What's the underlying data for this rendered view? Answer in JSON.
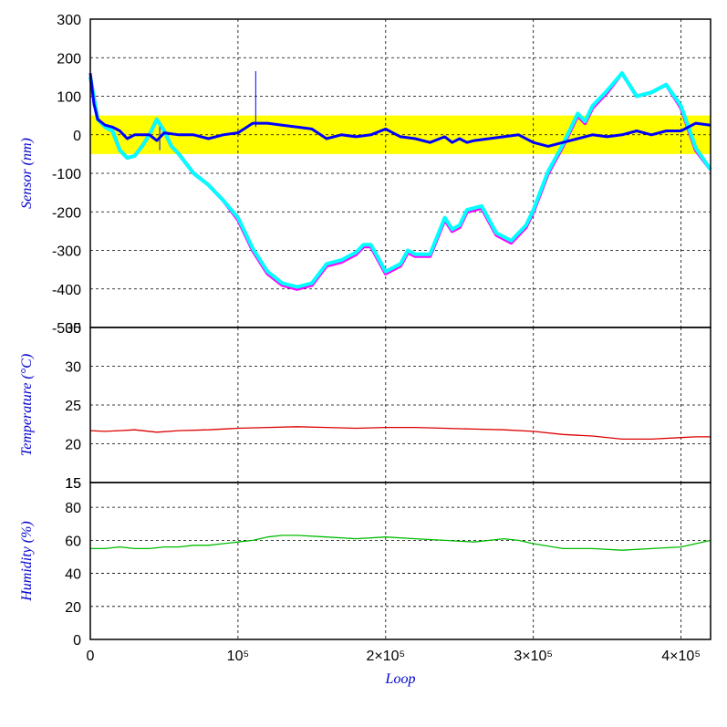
{
  "chart_data": [
    {
      "type": "line",
      "panel": "sensor",
      "ylabel": "Sensor (nm)",
      "ylim": [
        -500,
        300
      ],
      "yticks": [
        300,
        200,
        100,
        0,
        -100,
        -200,
        -300,
        -400,
        -500
      ],
      "xlim": [
        0,
        420000
      ],
      "band": {
        "y0": -50,
        "y1": 50,
        "color": "#ffff00"
      },
      "series": [
        {
          "color": "#ff00ff",
          "x": [
            0,
            5000,
            10000,
            15000,
            20000,
            25000,
            30000,
            35000,
            40000,
            45000,
            50000,
            55000,
            60000,
            70000,
            80000,
            90000,
            100000,
            110000,
            120000,
            130000,
            140000,
            145000,
            150000,
            160000,
            170000,
            180000,
            185000,
            190000,
            200000,
            210000,
            215000,
            220000,
            230000,
            240000,
            245000,
            250000,
            255000,
            265000,
            275000,
            285000,
            295000,
            300000,
            310000,
            320000,
            330000,
            335000,
            340000,
            350000,
            360000,
            370000,
            380000,
            390000,
            400000,
            410000,
            420000
          ],
          "values": [
            150,
            40,
            20,
            10,
            -40,
            -60,
            -55,
            -30,
            0,
            40,
            10,
            -30,
            -50,
            -100,
            -130,
            -170,
            -220,
            -300,
            -360,
            -390,
            -400,
            -395,
            -390,
            -340,
            -330,
            -310,
            -290,
            -290,
            -360,
            -340,
            -305,
            -315,
            -315,
            -220,
            -250,
            -240,
            -200,
            -190,
            -260,
            -280,
            -240,
            -200,
            -100,
            -30,
            50,
            30,
            70,
            110,
            160,
            100,
            110,
            130,
            70,
            -40,
            -90
          ]
        },
        {
          "color": "#00ffff",
          "x": [
            0,
            5000,
            10000,
            15000,
            20000,
            25000,
            30000,
            35000,
            40000,
            45000,
            50000,
            55000,
            60000,
            70000,
            80000,
            90000,
            100000,
            110000,
            120000,
            130000,
            140000,
            145000,
            150000,
            160000,
            170000,
            180000,
            185000,
            190000,
            200000,
            210000,
            215000,
            220000,
            230000,
            240000,
            245000,
            250000,
            255000,
            265000,
            275000,
            285000,
            295000,
            300000,
            310000,
            320000,
            330000,
            335000,
            340000,
            350000,
            360000,
            370000,
            380000,
            390000,
            400000,
            410000,
            420000
          ],
          "values": [
            150,
            40,
            20,
            10,
            -40,
            -60,
            -55,
            -30,
            0,
            40,
            10,
            -30,
            -50,
            -100,
            -130,
            -170,
            -215,
            -295,
            -355,
            -385,
            -395,
            -390,
            -385,
            -335,
            -325,
            -305,
            -285,
            -285,
            -355,
            -335,
            -300,
            -310,
            -310,
            -215,
            -245,
            -235,
            -195,
            -185,
            -255,
            -275,
            -235,
            -195,
            -95,
            -25,
            55,
            35,
            75,
            115,
            160,
            100,
            110,
            130,
            75,
            -35,
            -90
          ]
        },
        {
          "color": "#0000ff",
          "x": [
            0,
            2500,
            5000,
            10000,
            15000,
            20000,
            25000,
            30000,
            40000,
            45000,
            50000,
            60000,
            70000,
            80000,
            90000,
            100000,
            110000,
            120000,
            130000,
            140000,
            150000,
            160000,
            170000,
            180000,
            190000,
            200000,
            210000,
            220000,
            230000,
            240000,
            245000,
            250000,
            255000,
            260000,
            270000,
            280000,
            290000,
            300000,
            310000,
            320000,
            330000,
            340000,
            350000,
            360000,
            370000,
            380000,
            390000,
            400000,
            410000,
            420000
          ],
          "values": [
            160,
            80,
            40,
            25,
            20,
            10,
            -10,
            0,
            0,
            -15,
            5,
            0,
            0,
            -10,
            0,
            5,
            30,
            30,
            25,
            20,
            15,
            -10,
            0,
            -5,
            0,
            15,
            -5,
            -10,
            -20,
            -5,
            -20,
            -10,
            -20,
            -15,
            -10,
            -5,
            0,
            -20,
            -30,
            -20,
            -10,
            0,
            -5,
            0,
            10,
            0,
            10,
            10,
            30,
            25
          ]
        }
      ],
      "spikes": [
        {
          "x": 112000,
          "y": 165,
          "color": "#0000ff"
        },
        {
          "x": 47000,
          "y": -40,
          "color": "#0000ff"
        }
      ]
    },
    {
      "type": "line",
      "panel": "temperature",
      "ylabel": "Temperature (°C)",
      "ylim": [
        15,
        35
      ],
      "yticks": [
        35,
        30,
        25,
        20,
        15
      ],
      "xlim": [
        0,
        420000
      ],
      "series": [
        {
          "color": "#dd0000",
          "x": [
            0,
            10000,
            20000,
            30000,
            45000,
            60000,
            80000,
            100000,
            120000,
            140000,
            160000,
            180000,
            200000,
            220000,
            240000,
            260000,
            280000,
            300000,
            320000,
            340000,
            360000,
            380000,
            400000,
            410000,
            420000
          ],
          "values": [
            21.7,
            21.6,
            21.7,
            21.8,
            21.5,
            21.7,
            21.8,
            22.0,
            22.1,
            22.2,
            22.1,
            22.0,
            22.1,
            22.1,
            22.0,
            21.9,
            21.8,
            21.6,
            21.2,
            21.0,
            20.6,
            20.6,
            20.8,
            20.9,
            20.9
          ]
        }
      ]
    },
    {
      "type": "line",
      "panel": "humidity",
      "ylabel": "Humidity (%)",
      "ylim": [
        0,
        95
      ],
      "yticks": [
        80,
        60,
        40,
        20,
        0
      ],
      "top_tick_label": "15",
      "xlabel": "Loop",
      "xlim": [
        0,
        420000
      ],
      "xticks": [
        {
          "value": 0,
          "label": "0"
        },
        {
          "value": 100000,
          "label": "10⁵"
        },
        {
          "value": 200000,
          "label": "2×10⁵"
        },
        {
          "value": 300000,
          "label": "3×10⁵"
        },
        {
          "value": 400000,
          "label": "4×10⁵"
        }
      ],
      "series": [
        {
          "color": "#00bb00",
          "x": [
            0,
            10000,
            20000,
            30000,
            40000,
            50000,
            60000,
            70000,
            80000,
            90000,
            100000,
            110000,
            120000,
            130000,
            140000,
            160000,
            180000,
            200000,
            220000,
            240000,
            260000,
            280000,
            290000,
            300000,
            320000,
            340000,
            360000,
            380000,
            400000,
            410000,
            420000
          ],
          "values": [
            55,
            55,
            56,
            55,
            55,
            56,
            56,
            57,
            57,
            58,
            59,
            60,
            62,
            63,
            63,
            62,
            61,
            62,
            61,
            60,
            59,
            61,
            60,
            58,
            55,
            55,
            54,
            55,
            56,
            58,
            60
          ]
        }
      ]
    }
  ]
}
